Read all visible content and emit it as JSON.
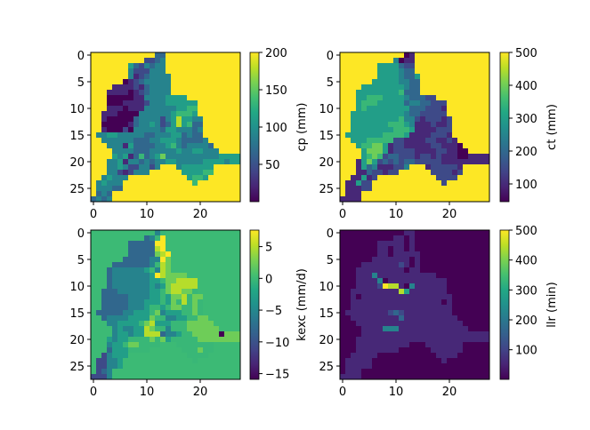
{
  "chart_data": [
    {
      "type": "heatmap",
      "colormap": "viridis",
      "colorbar_label": "cp (mm)",
      "vmin": 0,
      "vmax": 200,
      "colorbar_ticks": [
        50,
        100,
        150,
        200
      ],
      "xticks": [
        0,
        10,
        20
      ],
      "yticks": [
        0,
        5,
        10,
        15,
        20,
        25
      ],
      "grid_size": [
        28,
        28
      ],
      "outside_value": 200,
      "level_steps": 9,
      "grid_levels": [
        "............33..............",
        "..........2234..............",
        ".......5324344..............",
        ".......4222444..............",
        ".......41234444.............",
        "......012344444.............",
        "....11112134444.............",
        "...111101234444.............",
        "...000001144445555..........",
        "...00011112444555555........",
        "...11101114444445566........",
        "..111000044444456665........",
        "..1000003444424585544.......",
        "..0000013445423585633.......",
        "..1000204444435544434.......",
        ".44554444433444553433.......",
        "..44444433344555433334......",
        "...44415333344564344443.....",
        "....44443334444454455444....",
        "....545136345744444444445555",
        "...4451443434455444445555455",
        "...4454224424...4555555.....",
        "...44212444......555566.....",
        "..45444...........5665......",
        ".45444.............6........",
        ".44433......................",
        ".343........................",
        "3434........................"
      ]
    },
    {
      "type": "heatmap",
      "colormap": "viridis",
      "colorbar_label": "ct (mm)",
      "vmin": 46,
      "vmax": 500,
      "colorbar_ticks": [
        100,
        200,
        300,
        400,
        500
      ],
      "xticks": [
        0,
        10,
        20
      ],
      "yticks": [
        0,
        5,
        10,
        15,
        20,
        25
      ],
      "grid_size": [
        28,
        28
      ],
      "outside_value": 500,
      "level_steps": 9,
      "grid_levels": [
        "............01..............",
        "..........4011..............",
        ".......5555322..............",
        ".......5555433..............",
        ".......55554335.............",
        "......555554433.............",
        "....55555555433.............",
        "...555555556333.............",
        "...556665555433322..........",
        "...56665555534433222........",
        "...56555555553332221........",
        "..555555555543322222........",
        "..5555555556442122212.......",
        "..5555555666541112112.......",
        "..5555555566651111222.......",
        ".55555556666511112221.......",
        "..55566666221111221121......",
        "...56677512211111221110.....",
        "....57775122221111221100....",
        "....567623322212212111001111",
        "...1575232323322222111111111",
        "...1534111224...1222221.....",
        "...11322122......222212.....",
        "..11512...........2222......",
        ".11522.............2........",
        ".11122......................",
        ".111........................",
        "1111........................"
      ]
    },
    {
      "type": "heatmap",
      "colormap": "viridis",
      "colorbar_label": "kexc (mm/d)",
      "vmin": -15.9,
      "vmax": 7.6,
      "colorbar_ticks": [
        -15,
        -10,
        -5,
        0,
        5
      ],
      "colorbar_tick_labels": [
        "−15",
        "−10",
        "−5",
        "0",
        "5"
      ],
      "xticks": [
        0,
        10,
        20
      ],
      "yticks": [
        0,
        5,
        10,
        15,
        20,
        25
      ],
      "grid_size": [
        28,
        28
      ],
      "outside_value": 0,
      "level_steps": 9,
      "grid_levels": [
        "............46..............",
        "..........3469..............",
        ".......3333399..............",
        ".......3333389..............",
        ".......33333789.............",
        "......333334497.............",
        "....33333334687.............",
        "...344444456487.............",
        "...344444445987777..........",
        "...34444444556778888........",
        "...34444444545788888........",
        "..333444444556788776........",
        "..3333344445565778677.......",
        "..3333344455565768676.......",
        "..3333344456656776676.......",
        ".33333445556745556676.......",
        "..34444555576644556677......",
        "...44555567855566677777.....",
        "....45445587664666777777....",
        "....455455888344566777770777",
        "...5455666676756666677777777",
        "...4556776666...6666666.....",
        "...35556666......666766.....",
        "..24555...........6666......",
        ".22445.............6........",
        ".22445......................",
        ".234........................",
        "2224........................"
      ]
    },
    {
      "type": "heatmap",
      "colormap": "viridis",
      "colorbar_label": "llr (min)",
      "vmin": 1,
      "vmax": 500,
      "colorbar_ticks": [
        100,
        200,
        300,
        400,
        500
      ],
      "xticks": [
        0,
        10,
        20
      ],
      "yticks": [
        0,
        5,
        10,
        15,
        20,
        25
      ],
      "grid_size": [
        28,
        28
      ],
      "outside_value": 1,
      "level_steps": 9,
      "grid_levels": [
        "............11..............",
        "..........1101..............",
        ".......1111101..............",
        ".......1101101..............",
        ".......11011111.............",
        "......111111101.............",
        "....11111112101.............",
        "...111111111011.............",
        "...111411111111111..........",
        "...11114011111111111........",
        "...11112988104111111........",
        "..111111111851111111........",
        "..1011111111111111111.......",
        "..1111111111111111101.......",
        "..1111111111111111111.......",
        ".11111111232111111111.......",
        "..11111111131111111111......",
        "...11111111111111111111.....",
        "....11114441111111111111....",
        "....111111111111111111111111",
        "...1111111111111111111111111",
        "...1111111111...1111111.....",
        "...11111111......111111.....",
        "..11111...........1111......",
        ".11111.............1........",
        ".11111......................",
        ".111........................",
        "1111........................"
      ]
    }
  ]
}
